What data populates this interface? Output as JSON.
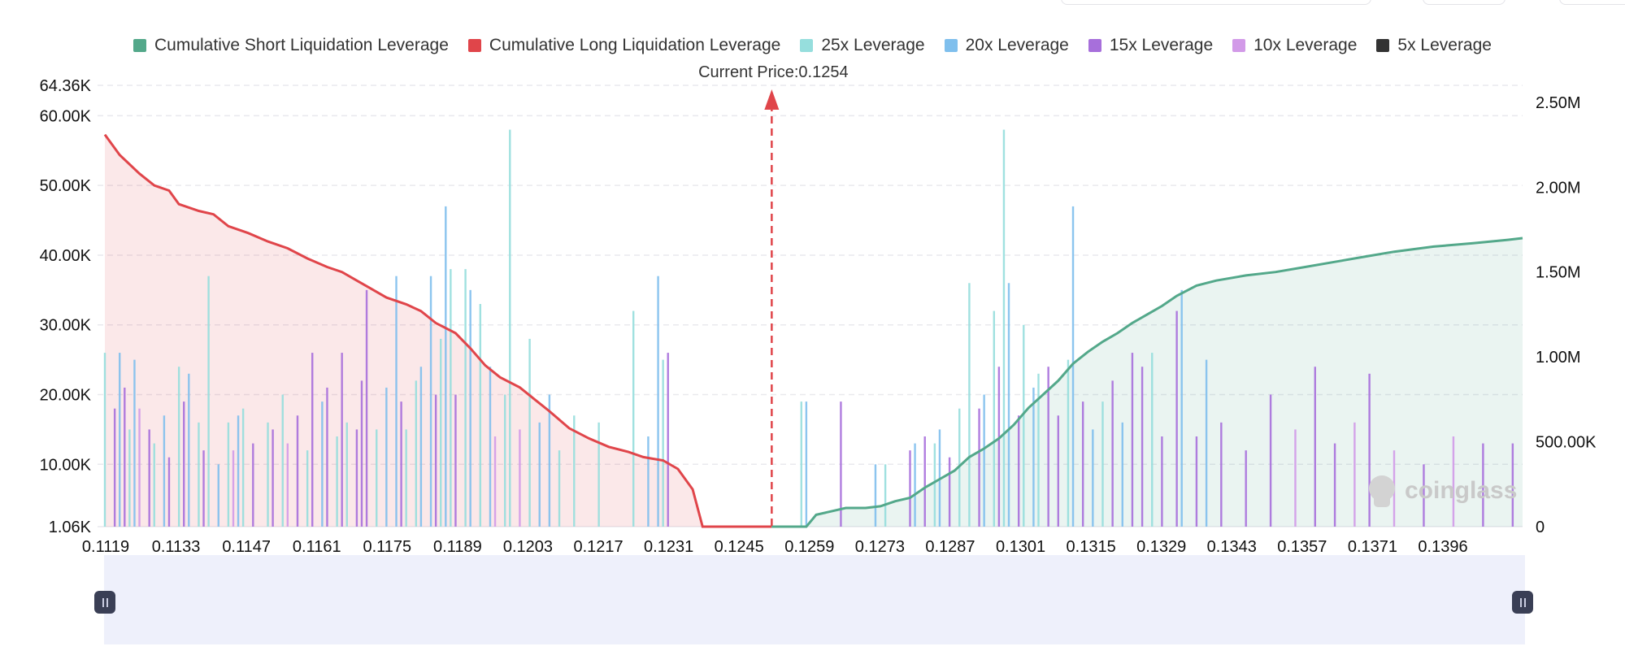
{
  "legend": [
    {
      "label": "Cumulative Short Liquidation Leverage",
      "color": "#53a88a"
    },
    {
      "label": "Cumulative Long Liquidation Leverage",
      "color": "#e0454a"
    },
    {
      "label": "25x Leverage",
      "color": "#96dedd"
    },
    {
      "label": "20x Leverage",
      "color": "#7fbfed"
    },
    {
      "label": "15x Leverage",
      "color": "#a76fdb"
    },
    {
      "label": "10x Leverage",
      "color": "#d29ae8"
    },
    {
      "label": "5x Leverage",
      "color": "#333333"
    }
  ],
  "current_price_label": "Current Price:0.1254",
  "watermark": "coinglass",
  "chart_data": {
    "type": "bar",
    "title": "",
    "current_price": 0.1254,
    "x_tick_labels": [
      "0.1119",
      "0.1133",
      "0.1147",
      "0.1161",
      "0.1175",
      "0.1189",
      "0.1203",
      "0.1217",
      "0.1231",
      "0.1245",
      "0.1259",
      "0.1273",
      "0.1287",
      "0.1301",
      "0.1315",
      "0.1329",
      "0.1343",
      "0.1357",
      "0.1371",
      "0.1396"
    ],
    "x_range": [
      0.1119,
      0.1406
    ],
    "y_left": {
      "ticks": [
        "1.06K",
        "10.00K",
        "20.00K",
        "30.00K",
        "40.00K",
        "50.00K",
        "60.00K",
        "64.36K"
      ],
      "tick_values": [
        1060,
        10000,
        20000,
        30000,
        40000,
        50000,
        60000,
        64360
      ],
      "range": [
        1060,
        64360
      ]
    },
    "y_right": {
      "ticks": [
        "0",
        "500.00K",
        "1.00M",
        "1.50M",
        "2.00M",
        "2.50M"
      ],
      "tick_values": [
        0,
        500000,
        1000000,
        1500000,
        2000000,
        2500000
      ],
      "range": [
        0,
        2500000
      ]
    },
    "cumulative_long": {
      "name": "Cumulative Long Liquidation Leverage",
      "points": [
        [
          0.1119,
          2310000
        ],
        [
          0.1122,
          2190000
        ],
        [
          0.1126,
          2080000
        ],
        [
          0.1129,
          2010000
        ],
        [
          0.1132,
          1980000
        ],
        [
          0.1134,
          1900000
        ],
        [
          0.1138,
          1860000
        ],
        [
          0.1141,
          1840000
        ],
        [
          0.1144,
          1770000
        ],
        [
          0.1148,
          1730000
        ],
        [
          0.1152,
          1680000
        ],
        [
          0.1156,
          1640000
        ],
        [
          0.116,
          1580000
        ],
        [
          0.1164,
          1530000
        ],
        [
          0.1167,
          1500000
        ],
        [
          0.117,
          1450000
        ],
        [
          0.1173,
          1400000
        ],
        [
          0.1176,
          1350000
        ],
        [
          0.118,
          1310000
        ],
        [
          0.1183,
          1270000
        ],
        [
          0.1186,
          1200000
        ],
        [
          0.119,
          1140000
        ],
        [
          0.1193,
          1050000
        ],
        [
          0.1196,
          950000
        ],
        [
          0.1199,
          880000
        ],
        [
          0.1203,
          820000
        ],
        [
          0.1206,
          750000
        ],
        [
          0.1209,
          680000
        ],
        [
          0.1213,
          580000
        ],
        [
          0.1217,
          520000
        ],
        [
          0.1221,
          470000
        ],
        [
          0.1225,
          440000
        ],
        [
          0.1228,
          410000
        ],
        [
          0.123,
          400000
        ],
        [
          0.1232,
          390000
        ],
        [
          0.1235,
          340000
        ],
        [
          0.1238,
          220000
        ],
        [
          0.124,
          0
        ],
        [
          0.1254,
          0
        ]
      ]
    },
    "cumulative_short": {
      "name": "Cumulative Short Liquidation Leverage",
      "points": [
        [
          0.1254,
          0
        ],
        [
          0.1261,
          0
        ],
        [
          0.1263,
          70000
        ],
        [
          0.1266,
          90000
        ],
        [
          0.1269,
          110000
        ],
        [
          0.1273,
          110000
        ],
        [
          0.1276,
          120000
        ],
        [
          0.1279,
          150000
        ],
        [
          0.1282,
          170000
        ],
        [
          0.1285,
          230000
        ],
        [
          0.1288,
          280000
        ],
        [
          0.1291,
          330000
        ],
        [
          0.1294,
          410000
        ],
        [
          0.1297,
          460000
        ],
        [
          0.13,
          520000
        ],
        [
          0.1303,
          600000
        ],
        [
          0.1306,
          700000
        ],
        [
          0.1309,
          780000
        ],
        [
          0.1312,
          860000
        ],
        [
          0.1315,
          960000
        ],
        [
          0.1318,
          1030000
        ],
        [
          0.1321,
          1090000
        ],
        [
          0.1324,
          1140000
        ],
        [
          0.1327,
          1200000
        ],
        [
          0.133,
          1250000
        ],
        [
          0.1333,
          1300000
        ],
        [
          0.1336,
          1360000
        ],
        [
          0.134,
          1420000
        ],
        [
          0.1344,
          1450000
        ],
        [
          0.135,
          1480000
        ],
        [
          0.1356,
          1500000
        ],
        [
          0.1362,
          1530000
        ],
        [
          0.1368,
          1560000
        ],
        [
          0.1374,
          1590000
        ],
        [
          0.138,
          1620000
        ],
        [
          0.1388,
          1650000
        ],
        [
          0.1396,
          1670000
        ],
        [
          0.1403,
          1690000
        ],
        [
          0.1406,
          1700000
        ]
      ]
    },
    "leverage_bars": [
      {
        "x": 0.1119,
        "value": 26000,
        "level": "25x"
      },
      {
        "x": 0.1121,
        "value": 18000,
        "level": "15x"
      },
      {
        "x": 0.1122,
        "value": 26000,
        "level": "20x"
      },
      {
        "x": 0.1123,
        "value": 21000,
        "level": "15x"
      },
      {
        "x": 0.1124,
        "value": 15000,
        "level": "25x"
      },
      {
        "x": 0.1125,
        "value": 25000,
        "level": "20x"
      },
      {
        "x": 0.1126,
        "value": 18000,
        "level": "10x"
      },
      {
        "x": 0.1128,
        "value": 15000,
        "level": "15x"
      },
      {
        "x": 0.1129,
        "value": 13000,
        "level": "25x"
      },
      {
        "x": 0.1131,
        "value": 17000,
        "level": "20x"
      },
      {
        "x": 0.1132,
        "value": 11000,
        "level": "15x"
      },
      {
        "x": 0.1134,
        "value": 24000,
        "level": "25x"
      },
      {
        "x": 0.1135,
        "value": 19000,
        "level": "15x"
      },
      {
        "x": 0.1136,
        "value": 23000,
        "level": "20x"
      },
      {
        "x": 0.1138,
        "value": 16000,
        "level": "25x"
      },
      {
        "x": 0.1139,
        "value": 12000,
        "level": "15x"
      },
      {
        "x": 0.114,
        "value": 37000,
        "level": "25x"
      },
      {
        "x": 0.1142,
        "value": 10000,
        "level": "20x"
      },
      {
        "x": 0.1144,
        "value": 16000,
        "level": "25x"
      },
      {
        "x": 0.1145,
        "value": 12000,
        "level": "10x"
      },
      {
        "x": 0.1146,
        "value": 17000,
        "level": "20x"
      },
      {
        "x": 0.1147,
        "value": 18000,
        "level": "25x"
      },
      {
        "x": 0.1149,
        "value": 13000,
        "level": "15x"
      },
      {
        "x": 0.1152,
        "value": 16000,
        "level": "25x"
      },
      {
        "x": 0.1153,
        "value": 15000,
        "level": "15x"
      },
      {
        "x": 0.1155,
        "value": 20000,
        "level": "25x"
      },
      {
        "x": 0.1156,
        "value": 13000,
        "level": "10x"
      },
      {
        "x": 0.1158,
        "value": 17000,
        "level": "15x"
      },
      {
        "x": 0.116,
        "value": 12000,
        "level": "25x"
      },
      {
        "x": 0.1161,
        "value": 26000,
        "level": "15x"
      },
      {
        "x": 0.1163,
        "value": 19000,
        "level": "20x"
      },
      {
        "x": 0.1164,
        "value": 21000,
        "level": "15x"
      },
      {
        "x": 0.1166,
        "value": 14000,
        "level": "25x"
      },
      {
        "x": 0.1167,
        "value": 26000,
        "level": "15x"
      },
      {
        "x": 0.1168,
        "value": 16000,
        "level": "25x"
      },
      {
        "x": 0.117,
        "value": 15000,
        "level": "15x"
      },
      {
        "x": 0.1171,
        "value": 22000,
        "level": "15x"
      },
      {
        "x": 0.1172,
        "value": 35000,
        "level": "15x"
      },
      {
        "x": 0.1174,
        "value": 15000,
        "level": "25x"
      },
      {
        "x": 0.1176,
        "value": 21000,
        "level": "20x"
      },
      {
        "x": 0.1178,
        "value": 37000,
        "level": "20x"
      },
      {
        "x": 0.1179,
        "value": 19000,
        "level": "15x"
      },
      {
        "x": 0.118,
        "value": 15000,
        "level": "25x"
      },
      {
        "x": 0.1182,
        "value": 22000,
        "level": "25x"
      },
      {
        "x": 0.1183,
        "value": 24000,
        "level": "20x"
      },
      {
        "x": 0.1185,
        "value": 37000,
        "level": "20x"
      },
      {
        "x": 0.1186,
        "value": 20000,
        "level": "15x"
      },
      {
        "x": 0.1187,
        "value": 28000,
        "level": "25x"
      },
      {
        "x": 0.1188,
        "value": 47000,
        "level": "20x"
      },
      {
        "x": 0.1189,
        "value": 38000,
        "level": "25x"
      },
      {
        "x": 0.119,
        "value": 20000,
        "level": "15x"
      },
      {
        "x": 0.1192,
        "value": 38000,
        "level": "25x"
      },
      {
        "x": 0.1193,
        "value": 35000,
        "level": "20x"
      },
      {
        "x": 0.1195,
        "value": 33000,
        "level": "25x"
      },
      {
        "x": 0.1197,
        "value": 24000,
        "level": "20x"
      },
      {
        "x": 0.1198,
        "value": 14000,
        "level": "10x"
      },
      {
        "x": 0.12,
        "value": 20000,
        "level": "25x"
      },
      {
        "x": 0.1201,
        "value": 58000,
        "level": "25x"
      },
      {
        "x": 0.1203,
        "value": 15000,
        "level": "10x"
      },
      {
        "x": 0.1205,
        "value": 28000,
        "level": "25x"
      },
      {
        "x": 0.1207,
        "value": 16000,
        "level": "20x"
      },
      {
        "x": 0.1209,
        "value": 20000,
        "level": "20x"
      },
      {
        "x": 0.1211,
        "value": 12000,
        "level": "25x"
      },
      {
        "x": 0.1214,
        "value": 17000,
        "level": "25x"
      },
      {
        "x": 0.1219,
        "value": 16000,
        "level": "25x"
      },
      {
        "x": 0.1226,
        "value": 32000,
        "level": "25x"
      },
      {
        "x": 0.1229,
        "value": 14000,
        "level": "20x"
      },
      {
        "x": 0.1231,
        "value": 37000,
        "level": "20x"
      },
      {
        "x": 0.1232,
        "value": 25000,
        "level": "25x"
      },
      {
        "x": 0.1233,
        "value": 26000,
        "level": "15x"
      },
      {
        "x": 0.126,
        "value": 19000,
        "level": "25x"
      },
      {
        "x": 0.1261,
        "value": 19000,
        "level": "20x"
      },
      {
        "x": 0.1268,
        "value": 19000,
        "level": "15x"
      },
      {
        "x": 0.1275,
        "value": 10000,
        "level": "20x"
      },
      {
        "x": 0.1277,
        "value": 10000,
        "level": "25x"
      },
      {
        "x": 0.1282,
        "value": 12000,
        "level": "15x"
      },
      {
        "x": 0.1283,
        "value": 13000,
        "level": "20x"
      },
      {
        "x": 0.1285,
        "value": 14000,
        "level": "15x"
      },
      {
        "x": 0.1287,
        "value": 13000,
        "level": "25x"
      },
      {
        "x": 0.1288,
        "value": 15000,
        "level": "20x"
      },
      {
        "x": 0.129,
        "value": 11000,
        "level": "15x"
      },
      {
        "x": 0.1292,
        "value": 18000,
        "level": "25x"
      },
      {
        "x": 0.1294,
        "value": 36000,
        "level": "25x"
      },
      {
        "x": 0.1296,
        "value": 18000,
        "level": "15x"
      },
      {
        "x": 0.1297,
        "value": 20000,
        "level": "20x"
      },
      {
        "x": 0.1299,
        "value": 32000,
        "level": "25x"
      },
      {
        "x": 0.13,
        "value": 24000,
        "level": "15x"
      },
      {
        "x": 0.1301,
        "value": 58000,
        "level": "25x"
      },
      {
        "x": 0.1302,
        "value": 36000,
        "level": "20x"
      },
      {
        "x": 0.1304,
        "value": 17000,
        "level": "15x"
      },
      {
        "x": 0.1305,
        "value": 30000,
        "level": "25x"
      },
      {
        "x": 0.1307,
        "value": 21000,
        "level": "20x"
      },
      {
        "x": 0.1308,
        "value": 23000,
        "level": "25x"
      },
      {
        "x": 0.131,
        "value": 24000,
        "level": "15x"
      },
      {
        "x": 0.1312,
        "value": 17000,
        "level": "15x"
      },
      {
        "x": 0.1314,
        "value": 25000,
        "level": "25x"
      },
      {
        "x": 0.1315,
        "value": 47000,
        "level": "20x"
      },
      {
        "x": 0.1317,
        "value": 19000,
        "level": "15x"
      },
      {
        "x": 0.1319,
        "value": 15000,
        "level": "20x"
      },
      {
        "x": 0.1321,
        "value": 19000,
        "level": "25x"
      },
      {
        "x": 0.1323,
        "value": 22000,
        "level": "15x"
      },
      {
        "x": 0.1325,
        "value": 16000,
        "level": "20x"
      },
      {
        "x": 0.1327,
        "value": 26000,
        "level": "15x"
      },
      {
        "x": 0.1329,
        "value": 24000,
        "level": "15x"
      },
      {
        "x": 0.1331,
        "value": 26000,
        "level": "25x"
      },
      {
        "x": 0.1333,
        "value": 14000,
        "level": "15x"
      },
      {
        "x": 0.1336,
        "value": 32000,
        "level": "15x"
      },
      {
        "x": 0.1337,
        "value": 35000,
        "level": "20x"
      },
      {
        "x": 0.134,
        "value": 14000,
        "level": "15x"
      },
      {
        "x": 0.1342,
        "value": 25000,
        "level": "20x"
      },
      {
        "x": 0.1345,
        "value": 16000,
        "level": "15x"
      },
      {
        "x": 0.135,
        "value": 12000,
        "level": "15x"
      },
      {
        "x": 0.1355,
        "value": 20000,
        "level": "15x"
      },
      {
        "x": 0.136,
        "value": 15000,
        "level": "10x"
      },
      {
        "x": 0.1364,
        "value": 24000,
        "level": "15x"
      },
      {
        "x": 0.1368,
        "value": 13000,
        "level": "15x"
      },
      {
        "x": 0.1372,
        "value": 16000,
        "level": "10x"
      },
      {
        "x": 0.1375,
        "value": 23000,
        "level": "15x"
      },
      {
        "x": 0.138,
        "value": 12000,
        "level": "10x"
      },
      {
        "x": 0.1386,
        "value": 10000,
        "level": "15x"
      },
      {
        "x": 0.1392,
        "value": 14000,
        "level": "10x"
      },
      {
        "x": 0.1398,
        "value": 13000,
        "level": "15x"
      },
      {
        "x": 0.1404,
        "value": 13000,
        "level": "15x"
      }
    ]
  }
}
